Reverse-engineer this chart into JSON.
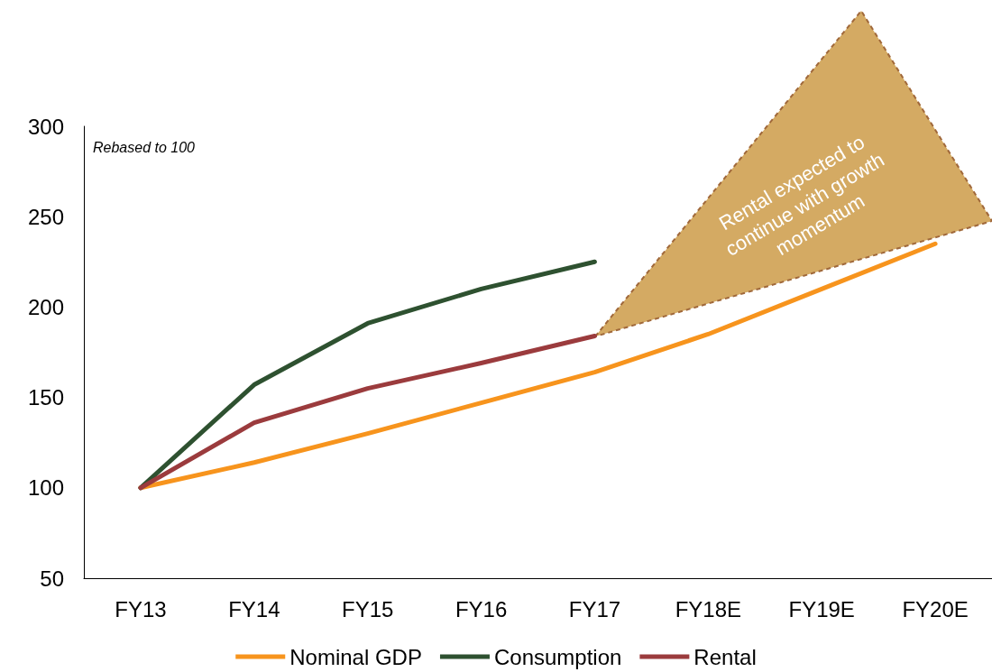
{
  "chart_data": {
    "type": "line",
    "categories": [
      "FY13",
      "FY14",
      "FY15",
      "FY16",
      "FY17",
      "FY18E",
      "FY19E",
      "FY20E"
    ],
    "series": [
      {
        "name": "Nominal GDP",
        "color": "#f7941d",
        "values": [
          100,
          114,
          130,
          147,
          164,
          185,
          210,
          235
        ]
      },
      {
        "name": "Consumption",
        "color": "#2e5130",
        "values": [
          100,
          157,
          191,
          210,
          225,
          null,
          null,
          null
        ]
      },
      {
        "name": "Rental",
        "color": "#9b3b3d",
        "values": [
          100,
          136,
          155,
          169,
          184,
          null,
          null,
          null
        ]
      }
    ],
    "ylim": [
      50,
      300
    ],
    "yticks": [
      50,
      100,
      150,
      200,
      250,
      300
    ],
    "grid": false,
    "legend": "bottom",
    "marker": "none",
    "line_style": "solid",
    "annotations": [
      "Rebased to 100",
      "Rental expected to continue with growth momentum"
    ]
  }
}
